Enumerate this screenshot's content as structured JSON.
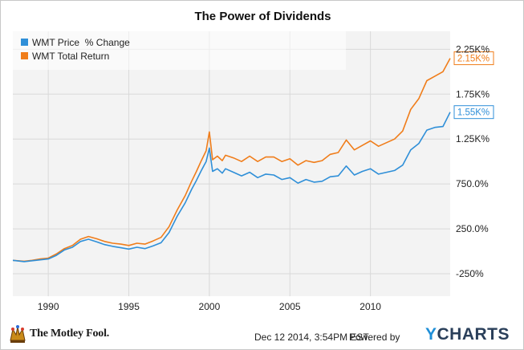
{
  "chart_data": {
    "type": "line",
    "title": "The Power of Dividends",
    "xlabel": "",
    "ylabel": "",
    "xlim": [
      1987.8,
      2014.95
    ],
    "ylim": [
      -500,
      2450
    ],
    "x_ticks": [
      1990,
      1995,
      2000,
      2005,
      2010
    ],
    "x_tick_labels": [
      "1990",
      "1995",
      "2000",
      "2005",
      "2010"
    ],
    "y_ticks": [
      -250,
      250,
      750,
      1250,
      1750,
      2250
    ],
    "y_tick_labels": [
      "-250%",
      "250.0%",
      "750.0%",
      "1.25K%",
      "1.75K%",
      "2.25K%"
    ],
    "grid": true,
    "legend_position": "top-left",
    "series": [
      {
        "name": "WMT Price  % Change",
        "color": "#2f8fd8",
        "end_label": "1.55K%",
        "x": [
          1987.8,
          1988.5,
          1989.0,
          1989.5,
          1990.0,
          1990.5,
          1991.0,
          1991.5,
          1992.0,
          1992.5,
          1993.0,
          1993.5,
          1994.0,
          1994.5,
          1995.0,
          1995.5,
          1996.0,
          1996.5,
          1997.0,
          1997.5,
          1998.0,
          1998.5,
          1998.9,
          1999.2,
          1999.5,
          1999.8,
          2000.0,
          2000.2,
          2000.5,
          2000.8,
          2001.0,
          2001.5,
          2002.0,
          2002.5,
          2003.0,
          2003.5,
          2004.0,
          2004.5,
          2005.0,
          2005.5,
          2006.0,
          2006.5,
          2007.0,
          2007.5,
          2008.0,
          2008.5,
          2009.0,
          2009.5,
          2010.0,
          2010.5,
          2011.0,
          2011.5,
          2012.0,
          2012.5,
          2013.0,
          2013.5,
          2014.0,
          2014.5,
          2014.95
        ],
        "values": [
          -100,
          -115,
          -105,
          -95,
          -85,
          -45,
          15,
          45,
          110,
          135,
          105,
          75,
          55,
          40,
          25,
          45,
          30,
          60,
          95,
          210,
          390,
          540,
          690,
          790,
          900,
          1000,
          1150,
          890,
          920,
          870,
          920,
          880,
          840,
          880,
          820,
          860,
          850,
          800,
          820,
          760,
          800,
          770,
          780,
          830,
          840,
          950,
          850,
          890,
          920,
          860,
          880,
          900,
          960,
          1130,
          1200,
          1350,
          1380,
          1390,
          1550
        ]
      },
      {
        "name": "WMT Total Return",
        "color": "#f07d1a",
        "end_label": "2.15K%",
        "x": [
          1987.8,
          1988.5,
          1989.0,
          1989.5,
          1990.0,
          1990.5,
          1991.0,
          1991.5,
          1992.0,
          1992.5,
          1993.0,
          1993.5,
          1994.0,
          1994.5,
          1995.0,
          1995.5,
          1996.0,
          1996.5,
          1997.0,
          1997.5,
          1998.0,
          1998.5,
          1998.9,
          1999.2,
          1999.5,
          1999.8,
          2000.0,
          2000.2,
          2000.5,
          2000.8,
          2001.0,
          2001.5,
          2002.0,
          2002.5,
          2003.0,
          2003.5,
          2004.0,
          2004.5,
          2005.0,
          2005.5,
          2006.0,
          2006.5,
          2007.0,
          2007.5,
          2008.0,
          2008.5,
          2009.0,
          2009.5,
          2010.0,
          2010.5,
          2011.0,
          2011.5,
          2012.0,
          2012.5,
          2013.0,
          2013.5,
          2014.0,
          2014.5,
          2014.95
        ],
        "values": [
          -100,
          -110,
          -100,
          -85,
          -75,
          -30,
          30,
          65,
          135,
          165,
          140,
          110,
          90,
          80,
          65,
          90,
          80,
          115,
          155,
          275,
          460,
          620,
          780,
          890,
          1010,
          1120,
          1330,
          1020,
          1060,
          1010,
          1070,
          1040,
          1000,
          1060,
          1000,
          1050,
          1050,
          1000,
          1030,
          960,
          1010,
          990,
          1010,
          1080,
          1100,
          1240,
          1130,
          1180,
          1230,
          1170,
          1210,
          1250,
          1340,
          1580,
          1700,
          1900,
          1950,
          2000,
          2150
        ]
      }
    ]
  },
  "footer": {
    "brand": "The Motley Fool.",
    "timestamp": "Dec 12 2014, 3:54PM EST.",
    "powered_by": "Powered by",
    "ycharts_y": "Y",
    "ycharts_rest": "CHARTS"
  }
}
